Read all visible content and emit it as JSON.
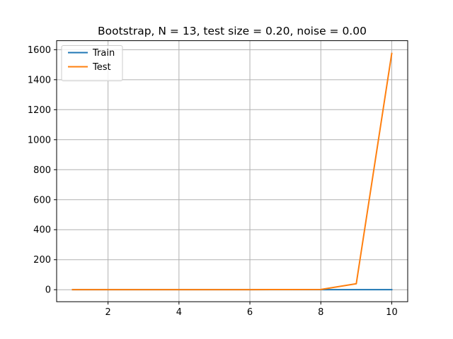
{
  "chart_data": {
    "type": "line",
    "title": "Bootstrap, N = 13, test size = 0.20, noise = 0.00",
    "xlabel": "",
    "ylabel": "",
    "xlim": [
      0.55,
      10.45
    ],
    "ylim": [
      -80,
      1660
    ],
    "x_ticks": [
      2,
      4,
      6,
      8,
      10
    ],
    "y_ticks": [
      0,
      200,
      400,
      600,
      800,
      1000,
      1200,
      1400,
      1600
    ],
    "grid": true,
    "legend_position": "top-left",
    "x": [
      1,
      2,
      3,
      4,
      5,
      6,
      7,
      8,
      9,
      10
    ],
    "series": [
      {
        "name": "Train",
        "color": "#1f77b4",
        "values": [
          0.3,
          0.2,
          0.2,
          0.2,
          0.2,
          0.2,
          0.2,
          0.2,
          0.2,
          0.2
        ]
      },
      {
        "name": "Test",
        "color": "#ff7f0e",
        "values": [
          0.5,
          0.4,
          0.4,
          0.4,
          0.5,
          0.6,
          0.8,
          1.5,
          40,
          1575
        ]
      }
    ]
  }
}
